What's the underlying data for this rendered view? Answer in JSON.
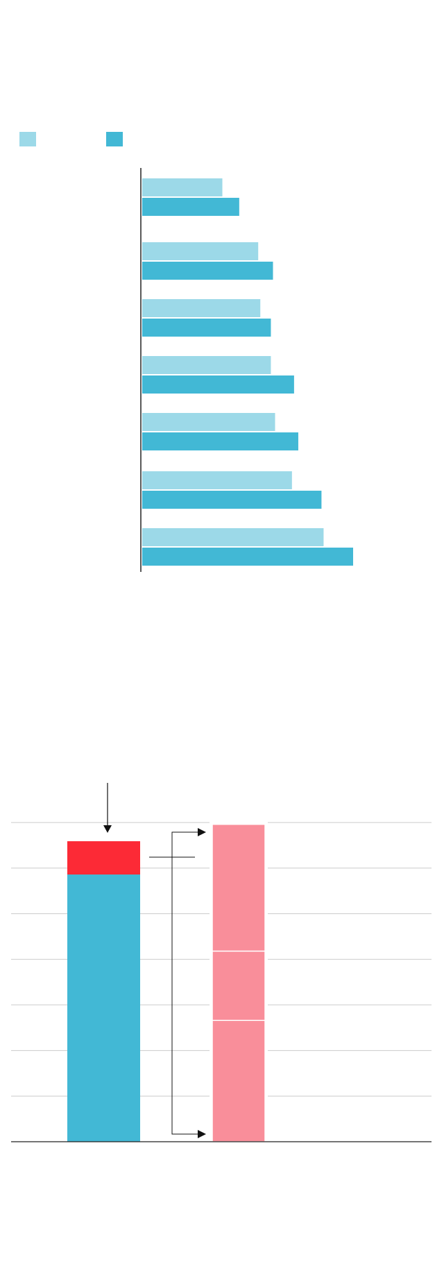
{
  "colors": {
    "light_teal": "#9cd9e8",
    "teal": "#42b8d5",
    "red": "#fc2a36",
    "pink": "#f98e9a",
    "grid": "#cccccc",
    "axis": "#222222"
  },
  "chart_data": [
    {
      "type": "bar",
      "orientation": "horizontal",
      "legend": {
        "placement": "top-left",
        "swatches": [
          "#9cd9e8",
          "#42b8d5"
        ]
      },
      "categories": [
        "",
        "",
        "",
        "",
        "",
        "",
        ""
      ],
      "series": [
        {
          "color": "#9cd9e8",
          "values": [
            38,
            55,
            56,
            61,
            63,
            71,
            86
          ]
        },
        {
          "color": "#42b8d5",
          "values": [
            46,
            62,
            61,
            72,
            74,
            85,
            100
          ]
        }
      ],
      "xlim": [
        0,
        120
      ],
      "grid": false
    },
    {
      "type": "bar",
      "stacked": true,
      "ylim": [
        0,
        7
      ],
      "grid": true,
      "bars": [
        {
          "segments": [
            {
              "value": 5.86,
              "color": "#42b8d5"
            },
            {
              "value": 0.73,
              "color": "#fc2a36"
            }
          ]
        },
        {
          "segments": [
            {
              "value": 2.66,
              "color": "#f98e9a"
            },
            {
              "value": 1.52,
              "color": "#f98e9a"
            },
            {
              "value": 2.78,
              "color": "#f98e9a"
            }
          ]
        }
      ]
    }
  ]
}
